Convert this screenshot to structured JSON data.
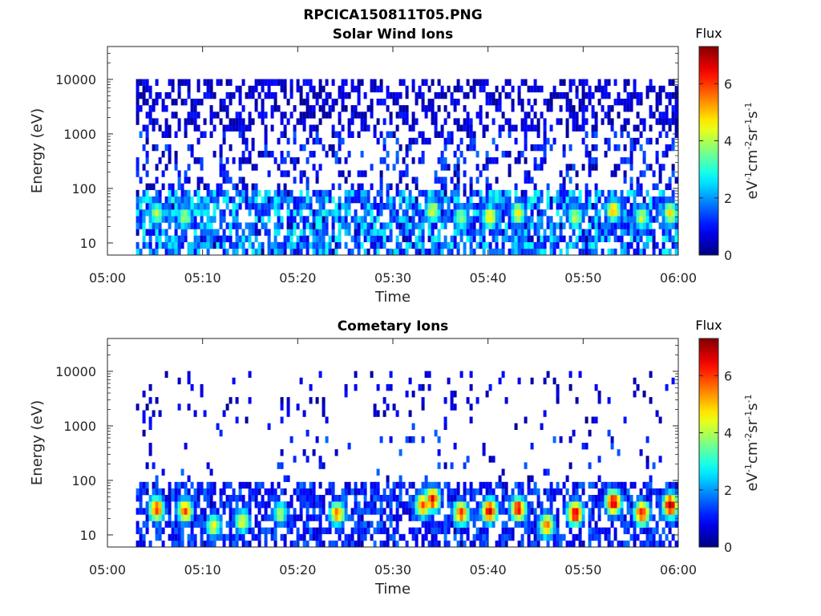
{
  "figure": {
    "title": "RPCICA150811T05.PNG"
  },
  "chart_data": [
    {
      "type": "heatmap",
      "title": "Solar Wind Ions",
      "xlabel": "Time",
      "ylabel": "Energy (eV)",
      "x_ticks": [
        "05:00",
        "05:10",
        "05:20",
        "05:30",
        "05:40",
        "05:50",
        "06:00"
      ],
      "x_range": [
        "05:00",
        "06:00"
      ],
      "y_scale": "log",
      "y_ticks": [
        10,
        100,
        1000,
        10000
      ],
      "y_tick_labels": [
        "10",
        "100",
        "1000",
        "10000"
      ],
      "y_range": [
        6,
        40000
      ],
      "data_start": "05:03",
      "colorbar": {
        "title": "Flux",
        "label": "eV-1cm-2sr-1s-1",
        "range": [
          0,
          7.3
        ],
        "ticks": [
          0,
          2,
          4,
          6
        ],
        "colormap": "jet"
      },
      "noise_density": 0.5,
      "low_energy_band": {
        "energy_min": 6,
        "energy_max": 100,
        "typical_flux": 2.5
      },
      "bursts": [
        {
          "time": "05:05",
          "energy": 35,
          "flux": 4.0
        },
        {
          "time": "05:08",
          "energy": 30,
          "flux": 4.0
        },
        {
          "time": "05:34",
          "energy": 40,
          "flux": 4.5
        },
        {
          "time": "05:37",
          "energy": 30,
          "flux": 4.0
        },
        {
          "time": "05:40",
          "energy": 30,
          "flux": 4.8
        },
        {
          "time": "05:43",
          "energy": 35,
          "flux": 4.5
        },
        {
          "time": "05:49",
          "energy": 30,
          "flux": 4.2
        },
        {
          "time": "05:53",
          "energy": 40,
          "flux": 5.0
        },
        {
          "time": "05:56",
          "energy": 30,
          "flux": 4.2
        },
        {
          "time": "05:59",
          "energy": 35,
          "flux": 4.8
        }
      ]
    },
    {
      "type": "heatmap",
      "title": "Cometary Ions",
      "xlabel": "Time",
      "ylabel": "Energy (eV)",
      "x_ticks": [
        "05:00",
        "05:10",
        "05:20",
        "05:30",
        "05:40",
        "05:50",
        "06:00"
      ],
      "x_range": [
        "05:00",
        "06:00"
      ],
      "y_scale": "log",
      "y_ticks": [
        10,
        100,
        1000,
        10000
      ],
      "y_tick_labels": [
        "10",
        "100",
        "1000",
        "10000"
      ],
      "y_range": [
        6,
        40000
      ],
      "data_start": "05:03",
      "colorbar": {
        "title": "Flux",
        "label": "eV-1cm-2sr-1s-1",
        "range": [
          0,
          7.3
        ],
        "ticks": [
          0,
          2,
          4,
          6
        ],
        "colormap": "jet"
      },
      "noise_density": 0.1,
      "low_energy_band": {
        "energy_min": 6,
        "energy_max": 100,
        "typical_flux": 1.5
      },
      "bursts": [
        {
          "time": "05:05",
          "energy": 30,
          "flux": 6.0
        },
        {
          "time": "05:08",
          "energy": 28,
          "flux": 5.8
        },
        {
          "time": "05:11",
          "energy": 15,
          "flux": 4.5
        },
        {
          "time": "05:14",
          "energy": 18,
          "flux": 4.5
        },
        {
          "time": "05:18",
          "energy": 25,
          "flux": 4.0
        },
        {
          "time": "05:24",
          "energy": 25,
          "flux": 5.5
        },
        {
          "time": "05:33",
          "energy": 35,
          "flux": 6.0
        },
        {
          "time": "05:34",
          "energy": 45,
          "flux": 6.5
        },
        {
          "time": "05:37",
          "energy": 25,
          "flux": 6.0
        },
        {
          "time": "05:40",
          "energy": 28,
          "flux": 6.8
        },
        {
          "time": "05:43",
          "energy": 30,
          "flux": 6.5
        },
        {
          "time": "05:46",
          "energy": 15,
          "flux": 5.5
        },
        {
          "time": "05:49",
          "energy": 25,
          "flux": 6.8
        },
        {
          "time": "05:53",
          "energy": 40,
          "flux": 7.0
        },
        {
          "time": "05:56",
          "energy": 25,
          "flux": 6.5
        },
        {
          "time": "05:59",
          "energy": 35,
          "flux": 7.0
        }
      ]
    }
  ]
}
